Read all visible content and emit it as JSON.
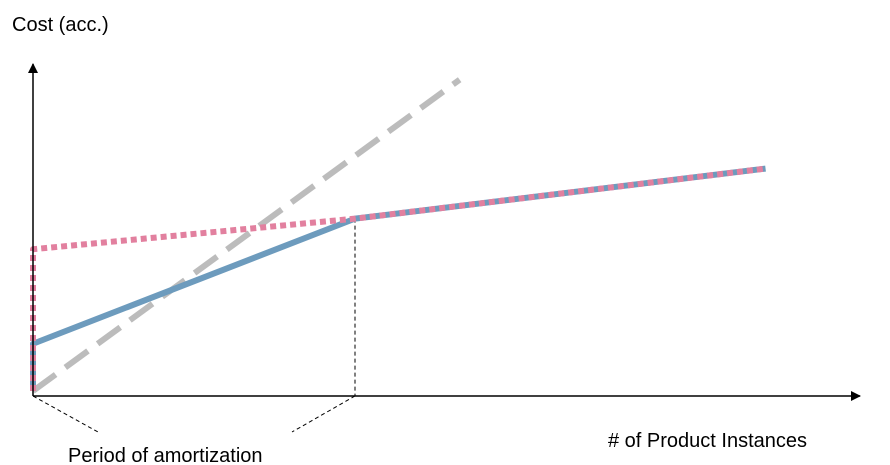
{
  "chart_data": {
    "type": "line",
    "ylabel": "Cost (acc.)",
    "xlabel": "# of Product Instances",
    "annotation": "Period of amortization",
    "grid": false,
    "legend": "none",
    "axis_ranges_approx": {
      "x": [
        0,
        100
      ],
      "y": [
        0,
        100
      ]
    },
    "series": [
      {
        "style": "solid",
        "color": "#6d9bbd",
        "points": [
          [
            0,
            0
          ],
          [
            0,
            17
          ],
          [
            40,
            62
          ],
          [
            91,
            80
          ]
        ]
      },
      {
        "style": "dotted",
        "color": "#e2809f",
        "points": [
          [
            0,
            0
          ],
          [
            0,
            51
          ],
          [
            40,
            62
          ],
          [
            91,
            80
          ]
        ]
      },
      {
        "style": "dashed",
        "color": "#bcbcbc",
        "points": [
          [
            0,
            0
          ],
          [
            53,
            112
          ]
        ]
      }
    ],
    "guides": {
      "amortization_end_x": 40,
      "amortization_end_y": 62
    }
  }
}
